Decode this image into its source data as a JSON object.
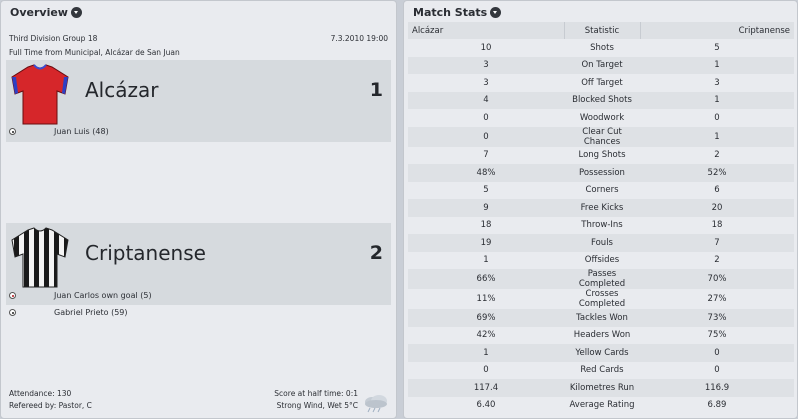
{
  "overview": {
    "title": "Overview",
    "competition": "Third Division Group 18",
    "date_time": "7.3.2010 19:00",
    "venue_line": "Full Time from Municipal, Alcázar de San Juan",
    "home": {
      "name": "Alcázar",
      "score": "1",
      "shirt_icon": "red-shirt-icon",
      "shirt_color": "#d6262a",
      "events": [
        {
          "icon": "goal-ball-icon",
          "text": "Juan Luis (48)"
        }
      ]
    },
    "away": {
      "name": "Criptanense",
      "score": "2",
      "shirt_icon": "black-white-striped-shirt-icon",
      "events": [
        {
          "icon": "own-goal-ball-icon",
          "text": "Juan Carlos own goal (5)"
        },
        {
          "icon": "goal-ball-icon",
          "text": "Gabriel Prieto (59)"
        }
      ]
    },
    "attendance": "Attendance: 130",
    "halftime": "Score at half time: 0:1",
    "referee": "Refereed by: Pastor, C",
    "weather": "Strong Wind, Wet 5°C",
    "weather_icon": "wind-rain-cloud-icon"
  },
  "match_stats": {
    "title": "Match Stats",
    "headers": {
      "home": "Alcázar",
      "stat": "Statistic",
      "away": "Criptanense"
    },
    "rows": [
      {
        "home": "10",
        "stat": "Shots",
        "away": "5"
      },
      {
        "home": "3",
        "stat": "On Target",
        "away": "1"
      },
      {
        "home": "3",
        "stat": "Off Target",
        "away": "3"
      },
      {
        "home": "4",
        "stat": "Blocked Shots",
        "away": "1"
      },
      {
        "home": "0",
        "stat": "Woodwork",
        "away": "0"
      },
      {
        "home": "0",
        "stat": "Clear Cut Chances",
        "away": "1"
      },
      {
        "home": "7",
        "stat": "Long Shots",
        "away": "2"
      },
      {
        "home": "48%",
        "stat": "Possession",
        "away": "52%"
      },
      {
        "home": "5",
        "stat": "Corners",
        "away": "6"
      },
      {
        "home": "9",
        "stat": "Free Kicks",
        "away": "20"
      },
      {
        "home": "18",
        "stat": "Throw-Ins",
        "away": "18"
      },
      {
        "home": "19",
        "stat": "Fouls",
        "away": "7"
      },
      {
        "home": "1",
        "stat": "Offsides",
        "away": "2"
      },
      {
        "home": "66%",
        "stat": "Passes Completed",
        "away": "70%"
      },
      {
        "home": "11%",
        "stat": "Crosses Completed",
        "away": "27%"
      },
      {
        "home": "69%",
        "stat": "Tackles Won",
        "away": "73%"
      },
      {
        "home": "42%",
        "stat": "Headers Won",
        "away": "75%"
      },
      {
        "home": "1",
        "stat": "Yellow Cards",
        "away": "0"
      },
      {
        "home": "0",
        "stat": "Red Cards",
        "away": "0"
      },
      {
        "home": "117.4",
        "stat": "Kilometres Run",
        "away": "116.9"
      },
      {
        "home": "6.40",
        "stat": "Average Rating",
        "away": "6.89"
      }
    ]
  }
}
